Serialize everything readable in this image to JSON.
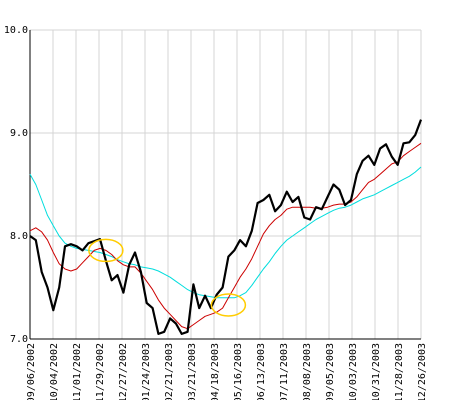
{
  "chart_data": {
    "type": "line",
    "title": "",
    "xlabel": "",
    "ylabel": "",
    "ylim": [
      7.0,
      10.0
    ],
    "y_ticks": [
      7.0,
      8.0,
      9.0,
      10.0
    ],
    "y_tick_labels": [
      "7.0",
      "8.0",
      "9.0",
      "10.0"
    ],
    "x_tick_labels": [
      "09/06/2002",
      "10/04/2002",
      "11/01/2002",
      "11/29/2002",
      "12/27/2002",
      "01/24/2003",
      "02/21/2003",
      "03/21/2003",
      "04/18/2003",
      "05/16/2003",
      "06/13/2003",
      "07/11/2003",
      "08/08/2003",
      "09/05/2003",
      "10/03/2003",
      "10/31/2003",
      "11/28/2003",
      "12/26/2003"
    ],
    "grid": true,
    "colors": {
      "price": "#000000",
      "ma_short": "#cc0000",
      "ma_long": "#00dddd",
      "highlight": "#ffcc00",
      "grid": "#d4d4d4"
    },
    "series": [
      {
        "key": "price",
        "values": [
          8.0,
          7.96,
          7.65,
          7.5,
          7.28,
          7.5,
          7.9,
          7.92,
          7.9,
          7.86,
          7.93,
          7.95,
          7.97,
          7.76,
          7.57,
          7.62,
          7.45,
          7.72,
          7.84,
          7.65,
          7.35,
          7.3,
          7.05,
          7.07,
          7.2,
          7.15,
          7.05,
          7.07,
          7.53,
          7.3,
          7.42,
          7.3,
          7.43,
          7.5,
          7.8,
          7.86,
          7.96,
          7.9,
          8.05,
          8.32,
          8.35,
          8.4,
          8.24,
          8.3,
          8.43,
          8.33,
          8.38,
          8.18,
          8.16,
          8.28,
          8.26,
          8.38,
          8.5,
          8.45,
          8.3,
          8.35,
          8.6,
          8.73,
          8.78,
          8.69,
          8.85,
          8.89,
          8.77,
          8.69,
          8.9,
          8.91,
          8.98,
          9.13
        ]
      },
      {
        "key": "ma_short",
        "values": [
          8.05,
          8.08,
          8.04,
          7.96,
          7.84,
          7.73,
          7.68,
          7.66,
          7.68,
          7.74,
          7.8,
          7.86,
          7.88,
          7.86,
          7.82,
          7.76,
          7.72,
          7.7,
          7.7,
          7.64,
          7.56,
          7.48,
          7.38,
          7.3,
          7.24,
          7.18,
          7.12,
          7.1,
          7.14,
          7.18,
          7.22,
          7.24,
          7.26,
          7.3,
          7.4,
          7.5,
          7.6,
          7.68,
          7.78,
          7.9,
          8.02,
          8.1,
          8.16,
          8.2,
          8.26,
          8.28,
          8.28,
          8.28,
          8.28,
          8.27,
          8.27,
          8.28,
          8.3,
          8.31,
          8.31,
          8.33,
          8.38,
          8.45,
          8.52,
          8.55,
          8.6,
          8.65,
          8.7,
          8.72,
          8.78,
          8.82,
          8.86,
          8.9
        ]
      },
      {
        "key": "ma_long",
        "values": [
          8.6,
          8.5,
          8.35,
          8.2,
          8.1,
          8.0,
          7.93,
          7.9,
          7.88,
          7.87,
          7.86,
          7.85,
          7.84,
          7.82,
          7.8,
          7.77,
          7.75,
          7.73,
          7.72,
          7.7,
          7.69,
          7.68,
          7.66,
          7.63,
          7.6,
          7.56,
          7.52,
          7.48,
          7.45,
          7.43,
          7.42,
          7.41,
          7.4,
          7.4,
          7.4,
          7.4,
          7.42,
          7.45,
          7.52,
          7.6,
          7.68,
          7.75,
          7.83,
          7.9,
          7.96,
          8.0,
          8.04,
          8.08,
          8.12,
          8.16,
          8.19,
          8.22,
          8.25,
          8.27,
          8.28,
          8.3,
          8.33,
          8.36,
          8.38,
          8.4,
          8.43,
          8.46,
          8.49,
          8.52,
          8.55,
          8.58,
          8.62,
          8.67
        ]
      }
    ],
    "highlights": [
      {
        "x_index": 13,
        "y": 7.86
      },
      {
        "x_index": 34,
        "y": 7.33
      }
    ]
  }
}
